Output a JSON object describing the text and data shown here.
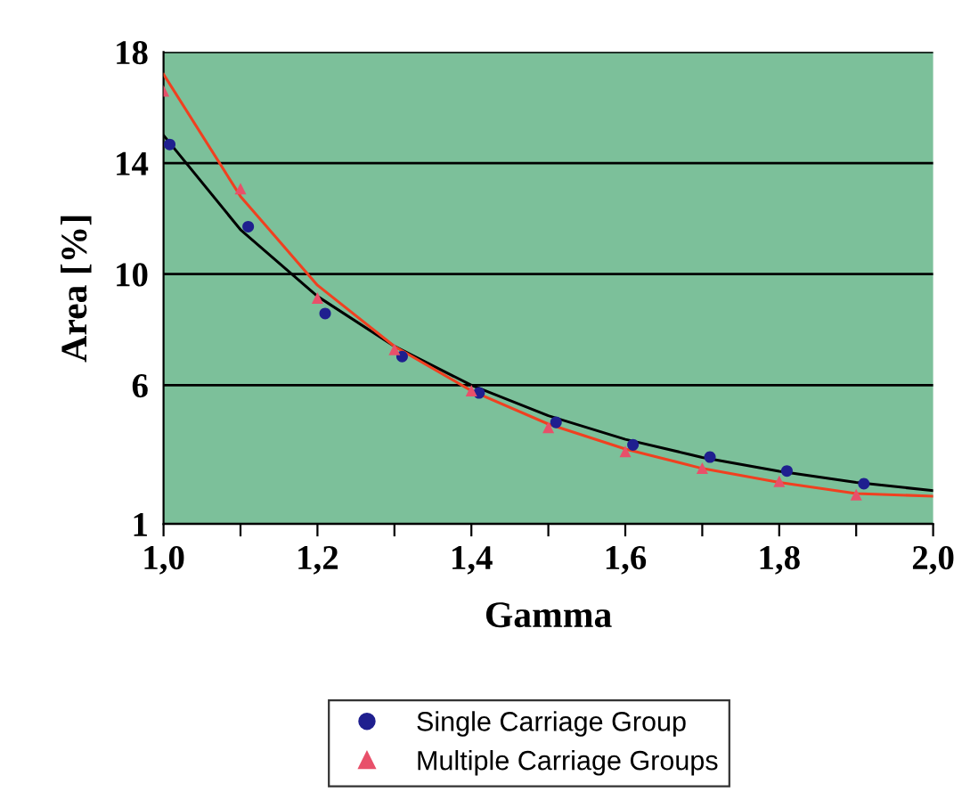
{
  "chart_data": {
    "type": "scatter",
    "xlabel": "Gamma",
    "ylabel": "Area [%]",
    "xlim": [
      1.0,
      2.0
    ],
    "ylim": [
      1,
      18
    ],
    "xticks": [
      {
        "value": 1.0,
        "label": "1,0"
      },
      {
        "value": 1.1,
        "label": null
      },
      {
        "value": 1.2,
        "label": "1,2"
      },
      {
        "value": 1.3,
        "label": null
      },
      {
        "value": 1.4,
        "label": "1,4"
      },
      {
        "value": 1.5,
        "label": null
      },
      {
        "value": 1.6,
        "label": "1,6"
      },
      {
        "value": 1.7,
        "label": null
      },
      {
        "value": 1.8,
        "label": "1,8"
      },
      {
        "value": 1.9,
        "label": null
      },
      {
        "value": 2.0,
        "label": "2,0"
      }
    ],
    "yticks": [
      1,
      6,
      10,
      14,
      18
    ],
    "grid": "y",
    "legend": "bottom",
    "series": [
      {
        "name": "Single Carriage Group",
        "color": "#1f1f8f",
        "marker": "circle",
        "x": [
          1.008,
          1.11,
          1.21,
          1.31,
          1.41,
          1.51,
          1.61,
          1.71,
          1.81,
          1.91
        ],
        "values": [
          14.67,
          11.71,
          8.58,
          7.03,
          5.72,
          4.66,
          3.85,
          3.41,
          2.91,
          2.45
        ]
      },
      {
        "name": "Multiple Carriage Groups",
        "color": "#e8506a",
        "marker": "triangle",
        "x": [
          1.0,
          1.1,
          1.2,
          1.3,
          1.4,
          1.5,
          1.6,
          1.7,
          1.8,
          1.9
        ],
        "values": [
          16.6,
          13.08,
          9.14,
          7.29,
          5.8,
          4.48,
          3.61,
          3.01,
          2.54,
          2.06
        ]
      },
      {
        "type": "line",
        "color": "#000000",
        "x": [
          1.0,
          1.1,
          1.2,
          1.3,
          1.4,
          1.5,
          1.6,
          1.7,
          1.8,
          1.9,
          2.0
        ],
        "values": [
          15.0,
          11.6,
          9.2,
          7.4,
          6.0,
          4.9,
          4.05,
          3.4,
          2.9,
          2.5,
          2.2
        ]
      },
      {
        "type": "line",
        "color": "#f04020",
        "x": [
          1.0,
          1.1,
          1.2,
          1.3,
          1.4,
          1.5,
          1.6,
          1.7,
          1.8,
          1.9,
          2.0
        ],
        "values": [
          17.2,
          12.8,
          9.6,
          7.4,
          5.8,
          4.6,
          3.7,
          3.0,
          2.5,
          2.1,
          2.0
        ]
      }
    ]
  }
}
